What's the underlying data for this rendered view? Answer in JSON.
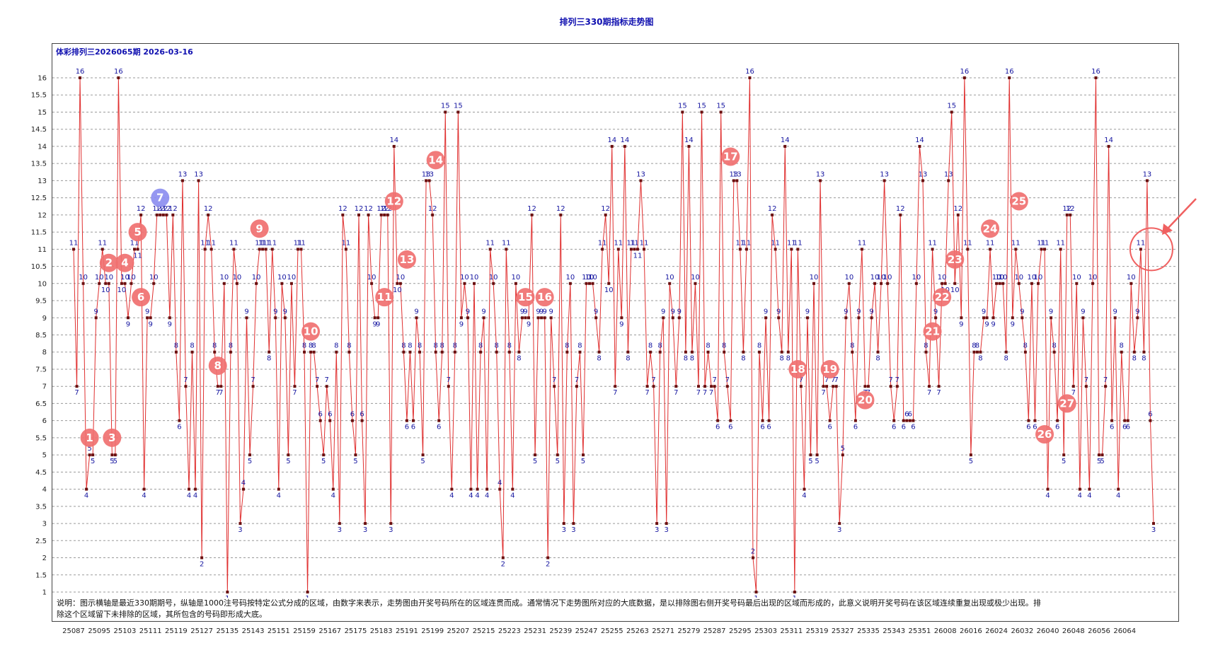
{
  "title": "排列三330期指标走势图",
  "subtitle": "体彩排列三2026065期  2026-03-16",
  "note": "说明：图示横轴是最近330期期号，纵轴是1000注号码按特定公式分成的区域，由数字来表示，走势图由开奖号码所在的区域连贯而成。通常情况下走势图所对应的大底数据，是以排除图右侧开奖号码最后出现的区域而形成的，此意义说明开奖号码在该区域连续重复出现或极少出现。排除这个区域留下未排除的区域，其所包含的号码即形成大底。",
  "colors": {
    "line": "#e03030",
    "point": "#6a1010",
    "label": "#1515a0",
    "marker": "#f07070",
    "marker_highlight": "#8c8ef0",
    "circle": "#f06060",
    "arrow": "#f06060"
  },
  "chart_data": {
    "type": "line",
    "title": "排列三330期指标走势图",
    "xlabel": "",
    "ylabel": "",
    "ylim": [
      1,
      16
    ],
    "yticks": [
      "1",
      "1.5",
      "2",
      "2.5",
      "3",
      "3.5",
      "4",
      "4.5",
      "5",
      "5.5",
      "6",
      "6.5",
      "7",
      "7.5",
      "8",
      "8.5",
      "9",
      "9.5",
      "10",
      "10.5",
      "11",
      "11.5",
      "12",
      "12.5",
      "13",
      "13.5",
      "14",
      "14.5",
      "15",
      "15.5",
      "16"
    ],
    "xticks": [
      "25087",
      "25095",
      "25103",
      "25111",
      "25119",
      "25127",
      "25135",
      "25143",
      "25151",
      "25159",
      "25167",
      "25175",
      "25183",
      "25191",
      "25199",
      "25207",
      "25215",
      "25223",
      "25231",
      "25239",
      "25247",
      "25255",
      "25263",
      "25271",
      "25279",
      "25287",
      "25295",
      "25303",
      "25311",
      "25319",
      "25327",
      "25335",
      "25343",
      "25351",
      "26008",
      "26016",
      "26024",
      "26032",
      "26040",
      "26048",
      "26056",
      "26064"
    ],
    "grid": true,
    "series": [
      {
        "values": [
          11,
          7,
          16,
          10,
          4,
          5,
          5,
          9,
          10,
          11,
          10,
          10,
          5,
          5,
          16,
          10,
          10,
          9,
          10,
          11,
          11,
          12,
          4,
          9,
          9,
          10,
          12,
          12,
          12,
          12,
          9,
          12,
          8,
          6,
          13,
          7,
          4,
          8,
          4,
          13,
          2,
          11,
          12,
          11,
          8,
          7,
          7,
          10,
          1,
          8,
          11,
          10,
          3,
          4,
          9,
          5,
          7,
          10,
          11,
          11,
          11,
          8,
          11,
          9,
          4,
          10,
          9,
          5,
          10,
          7,
          11,
          11,
          8,
          1,
          8,
          8,
          7,
          6,
          5,
          7,
          6,
          4,
          8,
          3,
          12,
          11,
          8,
          6,
          5,
          12,
          6,
          3,
          12,
          10,
          9,
          9,
          12,
          12,
          12,
          3,
          14,
          10,
          10,
          8,
          6,
          8,
          6,
          9,
          8,
          5,
          13,
          13,
          12,
          8,
          6,
          8,
          15,
          7,
          4,
          8,
          15,
          9,
          10,
          9,
          4,
          10,
          4,
          8,
          9,
          4,
          11,
          10,
          8,
          4,
          2,
          11,
          8,
          4,
          10,
          8,
          9,
          9,
          9,
          12,
          5,
          9,
          9,
          9,
          2,
          9,
          7,
          5,
          12,
          3,
          8,
          10,
          3,
          7,
          8,
          5,
          10,
          10,
          10,
          9,
          8,
          11,
          12,
          10,
          14,
          7,
          11,
          9,
          14,
          8,
          11,
          11,
          11,
          13,
          11,
          7,
          8,
          7,
          3,
          8,
          9,
          3,
          10,
          9,
          7,
          9,
          15,
          8,
          14,
          8,
          10,
          7,
          15,
          7,
          8,
          7,
          7,
          6,
          15,
          8,
          7,
          6,
          13,
          13,
          11,
          8,
          11,
          16,
          2,
          1,
          8,
          6,
          9,
          6,
          12,
          11,
          9,
          8,
          14,
          8,
          11,
          1,
          11,
          7,
          4,
          9,
          5,
          10,
          5,
          13,
          7,
          7,
          6,
          7,
          7,
          3,
          5,
          9,
          10,
          8,
          6,
          9,
          11,
          7,
          7,
          9,
          10,
          8,
          10,
          13,
          10,
          7,
          6,
          7,
          12,
          6,
          6,
          6,
          6,
          10,
          14,
          13,
          8,
          7,
          11,
          9,
          7,
          10,
          10,
          13,
          15,
          10,
          12,
          9,
          16,
          11,
          5,
          8,
          8,
          8,
          9,
          9,
          11,
          9,
          10,
          10,
          10,
          8,
          16,
          9,
          11,
          10,
          9,
          8,
          6,
          10,
          6,
          10,
          11,
          11,
          4,
          9,
          8,
          6,
          11,
          5,
          12,
          12,
          7,
          10,
          4,
          9,
          7,
          4,
          10,
          16,
          5,
          5,
          7,
          14,
          6,
          9,
          4,
          8,
          6,
          6,
          10,
          8,
          9,
          11,
          8,
          13,
          6,
          3
        ]
      }
    ],
    "markers": [
      "1",
      "2",
      "3",
      "4",
      "5",
      "6",
      "7",
      "8",
      "9",
      "10",
      "11",
      "12",
      "13",
      "14",
      "15",
      "16",
      "17",
      "18",
      "19",
      "20",
      "21",
      "22",
      "23",
      "24",
      "25",
      "26",
      "27"
    ],
    "marker_positions": [
      [
        5,
        5.5
      ],
      [
        11,
        10.6
      ],
      [
        12,
        5.5
      ],
      [
        16,
        10.6
      ],
      [
        20,
        11.5
      ],
      [
        21,
        9.6
      ],
      [
        27,
        12.5
      ],
      [
        45,
        7.6
      ],
      [
        58,
        11.6
      ],
      [
        74,
        8.6
      ],
      [
        97,
        9.6
      ],
      [
        100,
        12.4
      ],
      [
        104,
        10.7
      ],
      [
        113,
        13.6
      ],
      [
        141,
        9.6
      ],
      [
        147,
        9.6
      ],
      [
        205,
        13.7
      ],
      [
        226,
        7.5
      ],
      [
        236,
        7.5
      ],
      [
        247,
        6.6
      ],
      [
        268,
        8.6
      ],
      [
        271,
        9.6
      ],
      [
        275,
        10.7
      ],
      [
        286,
        11.6
      ],
      [
        295,
        12.4
      ],
      [
        303,
        5.6
      ],
      [
        310,
        6.5
      ]
    ],
    "highlight_marker": "7"
  }
}
